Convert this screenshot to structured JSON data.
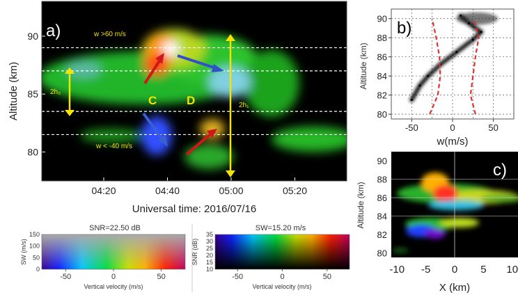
{
  "chart_data": [
    {
      "type": "heatmap",
      "panel_label": "a)",
      "xlabel": "Universal time: 2016/07/16",
      "ylabel": "Altitude (km)",
      "x_ticks": [
        "04:20",
        "04:40",
        "05:00",
        "05:20"
      ],
      "y_ticks": [
        80,
        85,
        90
      ],
      "ylim": [
        77.5,
        93
      ],
      "reference_altitudes_km": [
        89,
        87,
        83.5,
        81.5
      ],
      "annotations": {
        "w_up": "w >60 m/s",
        "w_down": "w < -40  m/s",
        "label_c": "C",
        "label_d": "D",
        "h0": "2h₀",
        "h1": "2h₁"
      },
      "colors": {
        "background": "#000000",
        "echo": "#22cc22",
        "updraft": "#e02020",
        "downdraft": "#2050e0",
        "annotation": "#f4e400"
      }
    },
    {
      "type": "scatter",
      "panel_label": "b)",
      "xlabel": "w(m/s)",
      "ylabel": "Altitude (km)",
      "x_ticks": [
        -50,
        0,
        50
      ],
      "y_ticks": [
        80,
        82,
        84,
        86,
        88,
        90
      ],
      "xlim": [
        -75,
        75
      ],
      "ylim": [
        79.5,
        91
      ],
      "grid": true,
      "envelope_color": "#e03030",
      "envelope_left": [
        [
          -28,
          80
        ],
        [
          -18,
          82
        ],
        [
          -15,
          84
        ],
        [
          -16,
          86
        ],
        [
          -20,
          88
        ],
        [
          -25,
          90
        ]
      ],
      "envelope_right": [
        [
          28,
          80
        ],
        [
          22,
          82
        ],
        [
          25,
          84
        ],
        [
          28,
          86
        ],
        [
          32,
          88
        ],
        [
          26,
          90
        ]
      ],
      "profile": [
        [
          -50,
          81.5
        ],
        [
          -40,
          83
        ],
        [
          -30,
          84
        ],
        [
          -15,
          85.2
        ],
        [
          5,
          86.5
        ],
        [
          25,
          87.8
        ],
        [
          35,
          88.6
        ],
        [
          20,
          89.5
        ],
        [
          10,
          90.3
        ]
      ]
    },
    {
      "type": "heatmap",
      "panel_label": "c)",
      "xlabel": "X (km)",
      "ylabel": "Altitude (km)",
      "x_ticks": [
        -10,
        -5,
        0,
        5,
        10
      ],
      "y_ticks": [
        80,
        82,
        84,
        86,
        88,
        90
      ],
      "xlim": [
        -11,
        11
      ],
      "ylim": [
        79.5,
        91
      ]
    }
  ],
  "colorbars": [
    {
      "title": "SNR=22.50 dB",
      "ylabel": "SW (m/s)",
      "y_ticks": [
        0,
        50,
        100,
        150
      ],
      "xlabel": "Vertical velocity (m/s)",
      "x_ticks": [
        -50,
        0,
        50
      ]
    },
    {
      "title": "SW=15.20 m/s",
      "ylabel": "SNR (dB)",
      "y_ticks": [
        10,
        15,
        20,
        25,
        30,
        35
      ],
      "xlabel": "Vertical velocity (m/s)",
      "x_ticks": [
        -50,
        0,
        50
      ]
    }
  ]
}
